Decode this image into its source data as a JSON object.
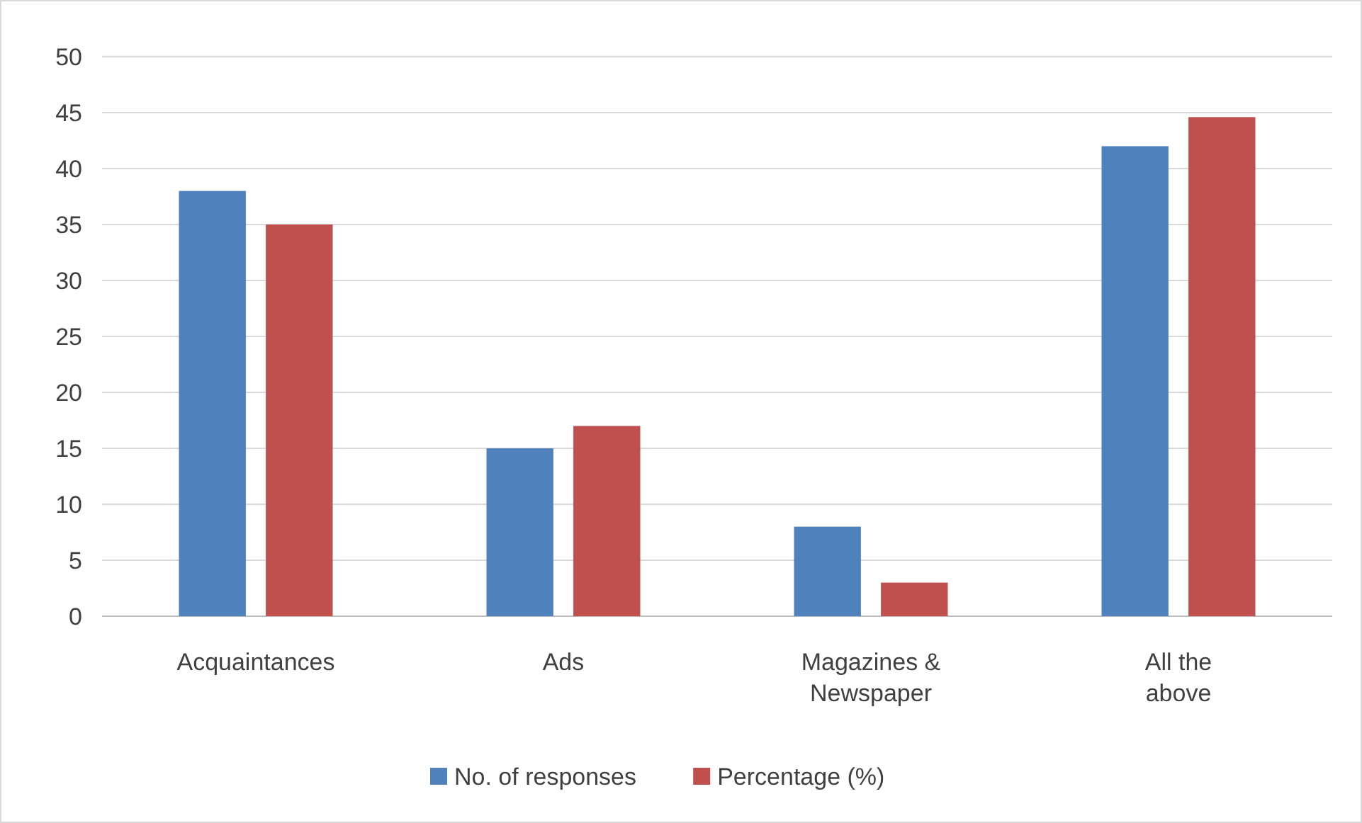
{
  "chart_data": {
    "type": "bar",
    "categories": [
      "Acquaintances",
      "Ads",
      "Magazines & Newspaper",
      "All the above"
    ],
    "series": [
      {
        "name": "No. of responses",
        "color": "#4f81bd",
        "values": [
          38,
          15,
          8,
          42
        ]
      },
      {
        "name": "Percentage (%)",
        "color": "#c0504d",
        "values": [
          35,
          17,
          3,
          44.6
        ]
      }
    ],
    "ylim": [
      0,
      50
    ],
    "yticks": [
      0,
      5,
      10,
      15,
      20,
      25,
      30,
      35,
      40,
      45,
      50
    ],
    "grid": "y",
    "legend": "bottom"
  }
}
